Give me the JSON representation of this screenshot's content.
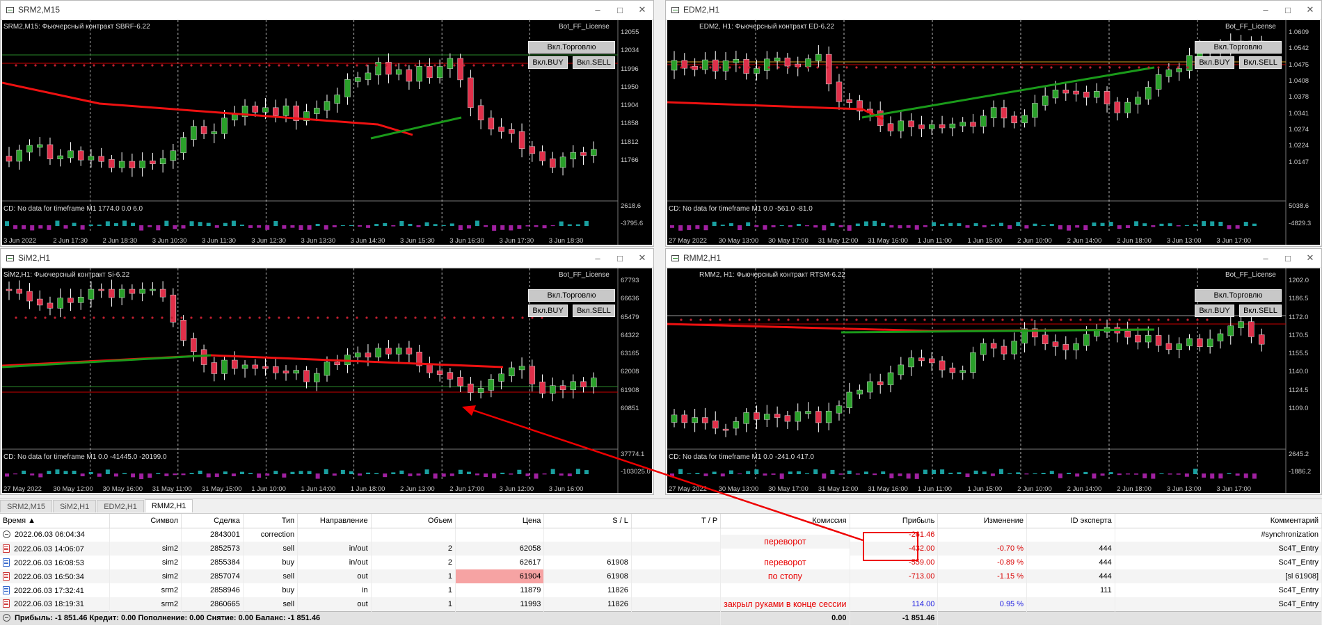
{
  "windows": [
    {
      "title": "SRM2,M15",
      "chart_label": "SRM2,M15: Фьючерсный контракт SBRF-6.22",
      "license": "Bot_FF_License",
      "btn_trade": "Вкл.Торговлю",
      "btn_buy": "Вкл.BUY",
      "btn_sell": "Вкл.SELL",
      "prices": [
        "12055",
        "12034",
        "11996",
        "11950",
        "11904",
        "11858",
        "11812",
        "11766"
      ],
      "ind_label": "CD: No data for timeframe M1 1774.0 0.0 6.0",
      "ind_top": "2618.6",
      "ind_bot": "-3795.6",
      "times": [
        "3 Jun 2022",
        "2 Jun 17:30",
        "2 Jun 18:30",
        "3 Jun 10:30",
        "3 Jun 11:30",
        "3 Jun 12:30",
        "3 Jun 13:30",
        "3 Jun 14:30",
        "3 Jun 15:30",
        "3 Jun 16:30",
        "3 Jun 17:30",
        "3 Jun 18:30"
      ]
    },
    {
      "title": "EDM2,H1",
      "chart_label": "EDM2, H1: Фьючерсный контракт ED-6.22",
      "license": "Bot_FF_License",
      "btn_trade": "Вкл.Торговлю",
      "btn_buy": "Вкл.BUY",
      "btn_sell": "Вкл.SELL",
      "prices": [
        "1.0609",
        "1.0542",
        "1.0475",
        "1.0408",
        "1.0378",
        "1.0341",
        "1.0274",
        "1.0224",
        "1.0147"
      ],
      "ind_label": "CD: No data for timeframe M1 0.0 -561.0 -81.0",
      "ind_top": "5038.6",
      "ind_bot": "-4829.3",
      "times": [
        "27 May 2022",
        "30 May 13:00",
        "30 May 17:00",
        "31 May 12:00",
        "31 May 16:00",
        "1 Jun 11:00",
        "1 Jun 15:00",
        "2 Jun 10:00",
        "2 Jun 14:00",
        "2 Jun 18:00",
        "3 Jun 13:00",
        "3 Jun 17:00"
      ]
    },
    {
      "title": "SiM2,H1",
      "chart_label": "SiM2,H1: Фьючерсный контракт Si-6.22",
      "license": "Bot_FF_License",
      "btn_trade": "Вкл.Торговлю",
      "btn_buy": "Вкл.BUY",
      "btn_sell": "Вкл.SELL",
      "prices": [
        "67793",
        "66636",
        "65479",
        "64322",
        "63165",
        "62008",
        "61908",
        "60851"
      ],
      "ind_label": "CD: No data for timeframe M1 0.0 -41445.0 -20199.0",
      "ind_top": "37774.1",
      "ind_bot": "-103025.0",
      "times": [
        "27 May 2022",
        "30 May 12:00",
        "30 May 16:00",
        "31 May 11:00",
        "31 May 15:00",
        "1 Jun 10:00",
        "1 Jun 14:00",
        "1 Jun 18:00",
        "2 Jun 13:00",
        "2 Jun 17:00",
        "3 Jun 12:00",
        "3 Jun 16:00"
      ]
    },
    {
      "title": "RMM2,H1",
      "chart_label": "RMM2, H1: Фьючерсный контракт RTSM-6.22",
      "license": "Bot_FF_License",
      "btn_trade": "Вкл.Торговлю",
      "btn_buy": "Вкл.BUY",
      "btn_sell": "Вкл.SELL",
      "prices": [
        "1202.0",
        "1186.5",
        "1172.0",
        "1170.5",
        "1155.5",
        "1140.0",
        "1124.5",
        "1109.0"
      ],
      "ind_label": "CD: No data for timeframe M1 0.0 -241.0 417.0",
      "ind_top": "2645.2",
      "ind_bot": "-1886.2",
      "times": [
        "27 May 2022",
        "30 May 13:00",
        "30 May 17:00",
        "31 May 12:00",
        "31 May 16:00",
        "1 Jun 11:00",
        "1 Jun 15:00",
        "2 Jun 10:00",
        "2 Jun 14:00",
        "2 Jun 18:00",
        "3 Jun 13:00",
        "3 Jun 17:00"
      ]
    }
  ],
  "tabs": [
    "SRM2,M15",
    "SiM2,H1",
    "EDM2,H1",
    "RMM2,H1"
  ],
  "table": {
    "headers": [
      "Время",
      "Символ",
      "Сделка",
      "Тип",
      "Направление",
      "Объем",
      "Цена",
      "S / L",
      "T / P",
      "Комиссия",
      "Прибыль",
      "Изменение",
      "ID эксперта",
      "Комментарий"
    ],
    "rows": [
      {
        "time": "2022.06.03 06:04:34",
        "symbol": "",
        "deal": "2843001",
        "type": "correction",
        "dir": "",
        "vol": "",
        "price": "",
        "sl": "",
        "tp": "",
        "comm": "",
        "profit": "-261.46",
        "change": "",
        "id": "",
        "comment": "#synchronization"
      },
      {
        "time": "2022.06.03 14:06:07",
        "symbol": "sim2",
        "deal": "2852573",
        "type": "sell",
        "dir": "in/out",
        "vol": "2",
        "price": "62058",
        "sl": "",
        "tp": "",
        "comm": "",
        "profit": "-432.00",
        "change": "-0.70 %",
        "id": "444",
        "comment": "Sc4T_Entry"
      },
      {
        "time": "2022.06.03 16:08:53",
        "symbol": "sim2",
        "deal": "2855384",
        "type": "buy",
        "dir": "in/out",
        "vol": "2",
        "price": "62617",
        "sl": "61908",
        "tp": "",
        "comm": "",
        "profit": "-559.00",
        "change": "-0.89 %",
        "id": "444",
        "comment": "Sc4T_Entry"
      },
      {
        "time": "2022.06.03 16:50:34",
        "symbol": "sim2",
        "deal": "2857074",
        "type": "sell",
        "dir": "out",
        "vol": "1",
        "price": "61904",
        "sl": "61908",
        "tp": "",
        "comm": "",
        "profit": "-713.00",
        "change": "-1.15 %",
        "id": "444",
        "comment": "[sl 61908]"
      },
      {
        "time": "2022.06.03 17:32:41",
        "symbol": "srm2",
        "deal": "2858946",
        "type": "buy",
        "dir": "in",
        "vol": "1",
        "price": "11879",
        "sl": "11826",
        "tp": "",
        "comm": "",
        "profit": "",
        "change": "",
        "id": "111",
        "comment": "Sc4T_Entry"
      },
      {
        "time": "2022.06.03 18:19:31",
        "symbol": "srm2",
        "deal": "2860665",
        "type": "sell",
        "dir": "out",
        "vol": "1",
        "price": "11993",
        "sl": "11826",
        "tp": "",
        "comm": "",
        "profit": "114.00",
        "change": "0.95 %",
        "id": "",
        "comment": "Sc4T_Entry"
      }
    ],
    "notes": {
      "pereverot1": "переворот",
      "pereverot2": "переворот",
      "stop": "по стопу",
      "manual": "закрыл руками в конце сессии"
    },
    "footer": {
      "summary": "Прибыль: -1 851.46  Кредит: 0.00  Пополнение: 0.00  Снятие: 0.00  Баланс: -1 851.46",
      "comm": "0.00",
      "profit": "-1 851.46"
    }
  }
}
